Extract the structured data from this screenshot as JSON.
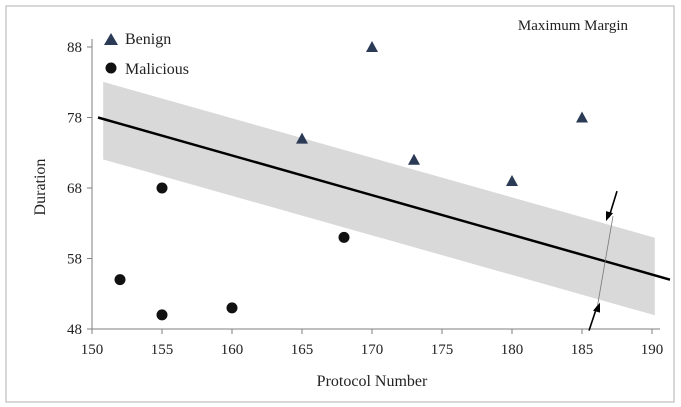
{
  "chart_data": {
    "type": "scatter",
    "title": "",
    "annotation": "Maximum Margin",
    "xlabel": "Protocol Number",
    "ylabel": "Duration",
    "xlim": [
      150,
      190
    ],
    "ylim": [
      48,
      88
    ],
    "x_ticks": [
      150,
      155,
      160,
      165,
      170,
      175,
      180,
      185,
      190
    ],
    "y_ticks": [
      48,
      58,
      68,
      78,
      88
    ],
    "grid": false,
    "legend_position": "top-left",
    "series": [
      {
        "name": "Benign",
        "marker": "triangle",
        "color": "#2b3a55",
        "points": [
          {
            "x": 165,
            "y": 75
          },
          {
            "x": 170,
            "y": 88
          },
          {
            "x": 173,
            "y": 72
          },
          {
            "x": 180,
            "y": 69
          },
          {
            "x": 185,
            "y": 78
          }
        ]
      },
      {
        "name": "Malicious",
        "marker": "circle",
        "color": "#111111",
        "points": [
          {
            "x": 152,
            "y": 55
          },
          {
            "x": 155,
            "y": 68
          },
          {
            "x": 155,
            "y": 50
          },
          {
            "x": 160,
            "y": 51
          },
          {
            "x": 168,
            "y": 61
          }
        ]
      }
    ],
    "decision_boundary": {
      "x": [
        150,
        191
      ],
      "y": [
        78,
        55
      ]
    },
    "margin_band": {
      "half_width": 5.5,
      "color": "#d9d9d9"
    }
  }
}
